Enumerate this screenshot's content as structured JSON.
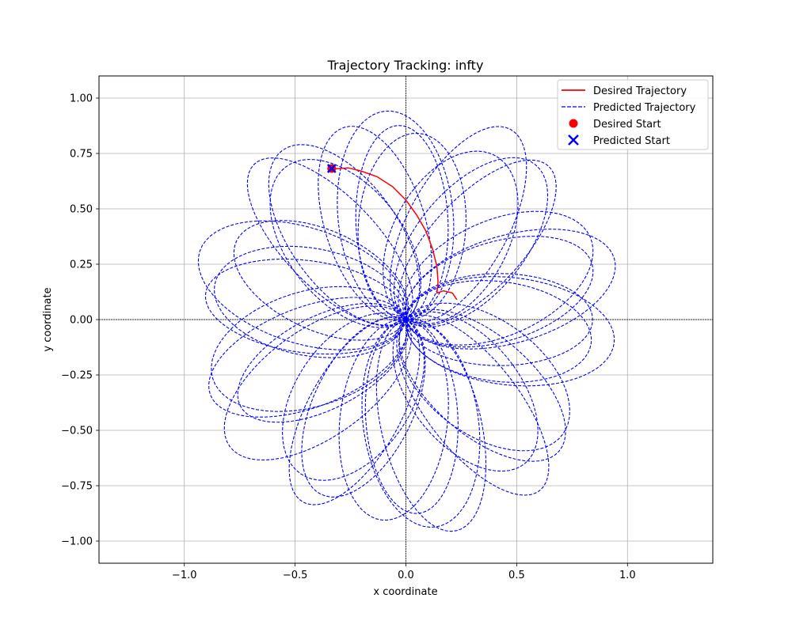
{
  "chart_data": {
    "type": "line",
    "title": "Trajectory Tracking: infty",
    "xlabel": "x coordinate",
    "ylabel": "y coordinate",
    "xlim": [
      -1.385,
      1.385
    ],
    "ylim": [
      -1.1,
      1.1
    ],
    "grid": true,
    "legend_position": "top-right",
    "x_ticks": [
      -1.0,
      -0.5,
      0.0,
      0.5,
      1.0
    ],
    "x_tick_labels": [
      "−1.0",
      "−0.5",
      "0.0",
      "0.5",
      "1.0"
    ],
    "y_ticks": [
      1.0,
      0.75,
      0.5,
      0.25,
      0.0,
      -0.25,
      -0.5,
      -0.75,
      -1.0
    ],
    "y_tick_labels": [
      "1.00",
      "0.75",
      "0.50",
      "0.25",
      "0.00",
      "−0.25",
      "−0.50",
      "−0.75",
      "−1.00"
    ],
    "legend": [
      {
        "label": "Desired Trajectory",
        "kind": "line",
        "color": "#ff0000"
      },
      {
        "label": "Predicted Trajectory",
        "kind": "dashed",
        "color": "#0000ff"
      },
      {
        "label": "Desired Start",
        "kind": "dot",
        "color": "#ff0000"
      },
      {
        "label": "Predicted Start",
        "kind": "cross",
        "color": "#0000ff"
      }
    ],
    "series": [
      {
        "name": "Desired Trajectory",
        "style": "solid",
        "color": "#ff0000",
        "points": [
          [
            -0.33,
            0.68
          ],
          [
            -0.26,
            0.685
          ],
          [
            -0.2,
            0.67
          ],
          [
            -0.13,
            0.645
          ],
          [
            -0.06,
            0.6
          ],
          [
            0.0,
            0.54
          ],
          [
            0.05,
            0.47
          ],
          [
            0.09,
            0.4
          ],
          [
            0.12,
            0.32
          ],
          [
            0.14,
            0.24
          ],
          [
            0.145,
            0.17
          ],
          [
            0.14,
            0.12
          ],
          [
            0.17,
            0.13
          ],
          [
            0.21,
            0.12
          ],
          [
            0.23,
            0.09
          ]
        ]
      },
      {
        "name": "Predicted Trajectory",
        "style": "dashed",
        "color": "#0000ff",
        "generator": "rose",
        "petal_length": 0.98,
        "petal_width": 0.52,
        "petal_count": 36
      }
    ],
    "markers": [
      {
        "name": "Desired Start",
        "shape": "circle",
        "x": -0.335,
        "y": 0.682,
        "color": "#ff0000"
      },
      {
        "name": "Predicted Start",
        "shape": "cross",
        "x": -0.335,
        "y": 0.682,
        "color": "#0000ff"
      }
    ]
  }
}
